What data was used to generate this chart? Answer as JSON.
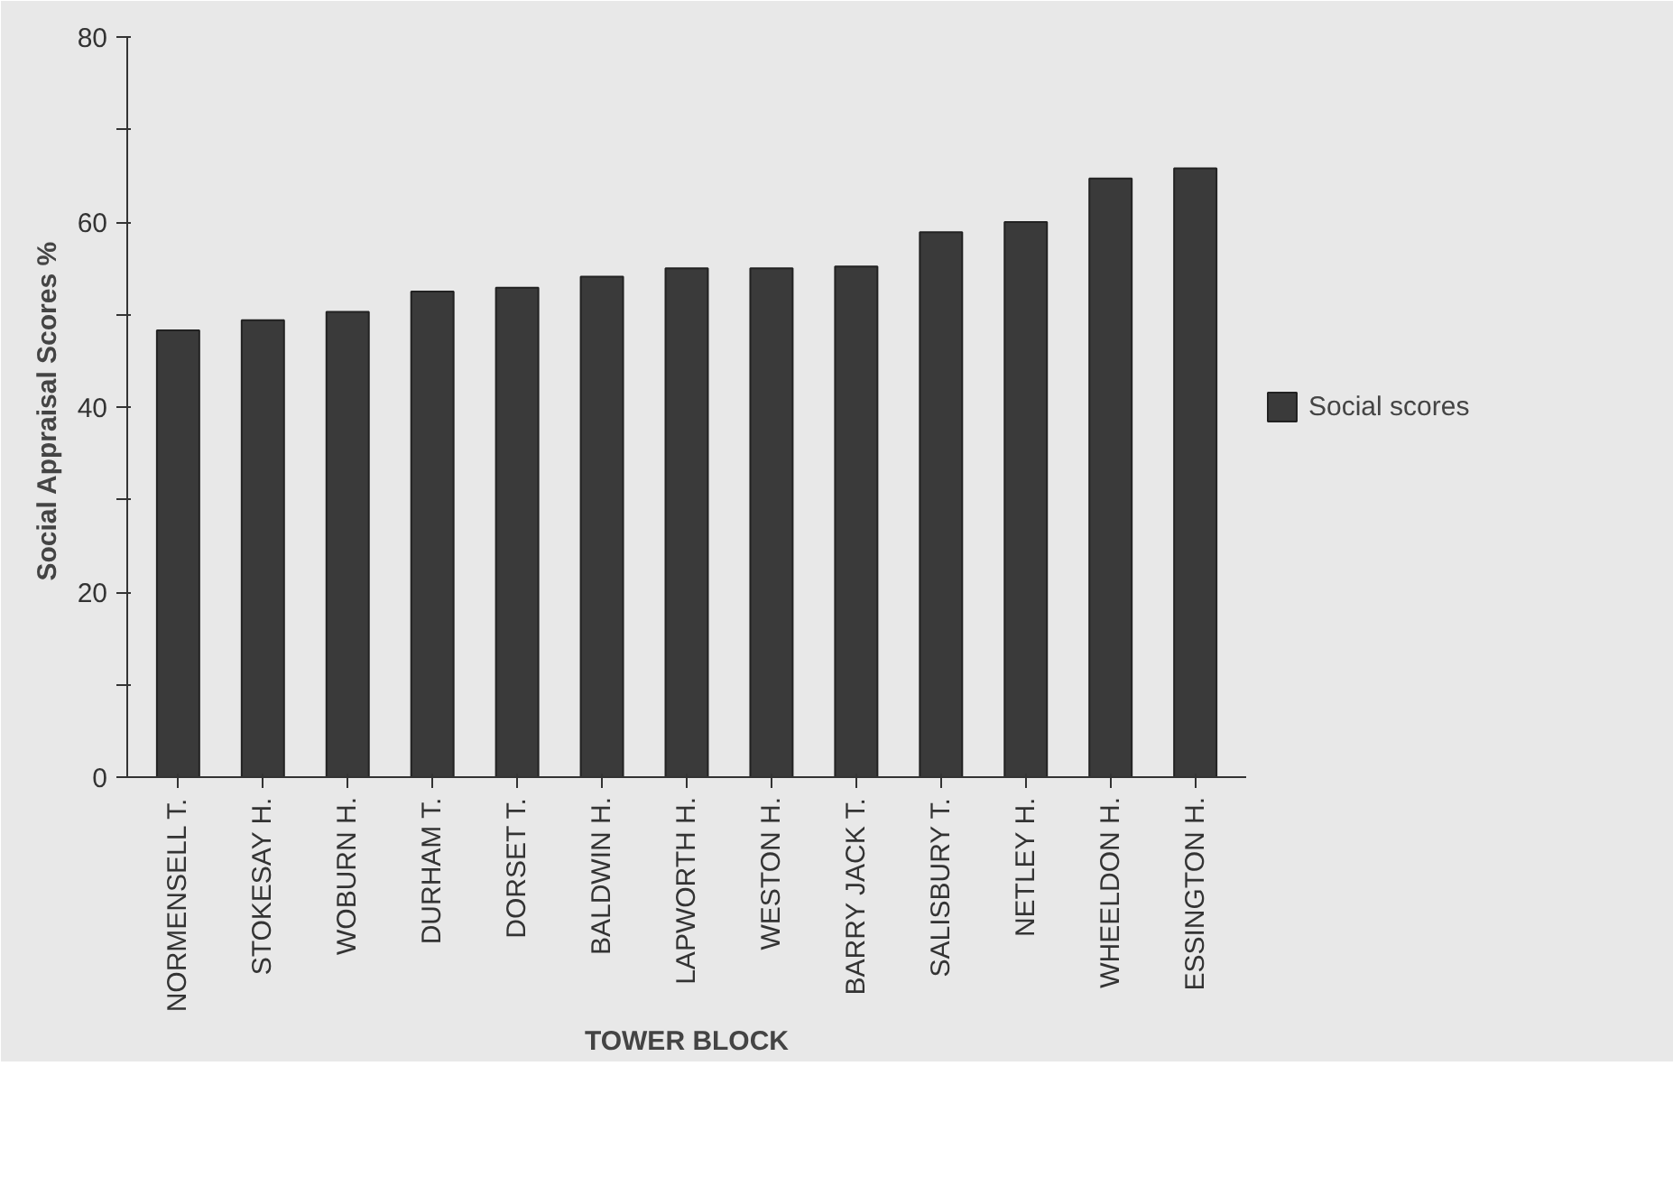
{
  "chart_data": {
    "type": "bar",
    "ylabel": "Social Appraisal Scores  %",
    "xlabel": "TOWER BLOCK",
    "categories": [
      "NORMENSELL T.",
      "STOKESAY H.",
      "WOBURN H.",
      "DURHAM T.",
      "DORSET T.",
      "BALDWIN H.",
      "LAPWORTH H.",
      "WESTON H.",
      "BARRY JACK T.",
      "SALISBURY T.",
      "NETLEY H.",
      "WHEELDON H.",
      "ESSINGTON H."
    ],
    "series": [
      {
        "name": "Social scores",
        "color": "#3a3a3a",
        "values": [
          48.3,
          49.4,
          50.3,
          52.5,
          52.9,
          54.1,
          55.0,
          55.0,
          55.2,
          58.9,
          60.0,
          64.7,
          65.8
        ]
      }
    ],
    "ylim": [
      0,
      80
    ],
    "yticks": [
      0,
      {
        "value": 10,
        "label": null
      },
      20,
      {
        "value": 30,
        "label": null
      },
      40,
      {
        "value": 50,
        "label": null
      },
      60,
      {
        "value": 70,
        "label": null
      },
      80
    ],
    "legend": "right"
  }
}
